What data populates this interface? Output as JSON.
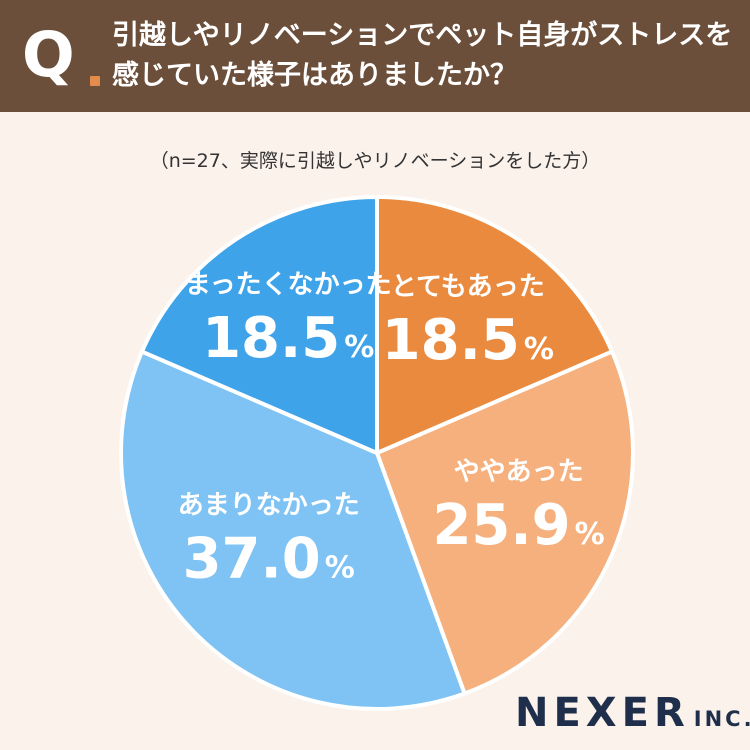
{
  "question": {
    "marker": "Q",
    "line1": "引越しやリノベーションでペット自身がストレスを",
    "line2": "感じていた様子はありましたか？"
  },
  "subtitle": "（n=27、実際に引越しやリノベーションをした方）",
  "brand": {
    "name": "NEXER",
    "suffix": "INC."
  },
  "chart_data": {
    "type": "pie",
    "unit": "%",
    "slices": [
      {
        "label": "とてもあった",
        "value": 18.5,
        "display": "18.5",
        "color": "#ea8a3e"
      },
      {
        "label": "ややあった",
        "value": 25.9,
        "display": "25.9",
        "color": "#f5b07d"
      },
      {
        "label": "あまりなかった",
        "value": 37.0,
        "display": "37.0",
        "color": "#7fc3f4"
      },
      {
        "label": "まったくなかった",
        "value": 18.5,
        "display": "18.5",
        "color": "#3fa3e9"
      }
    ]
  }
}
